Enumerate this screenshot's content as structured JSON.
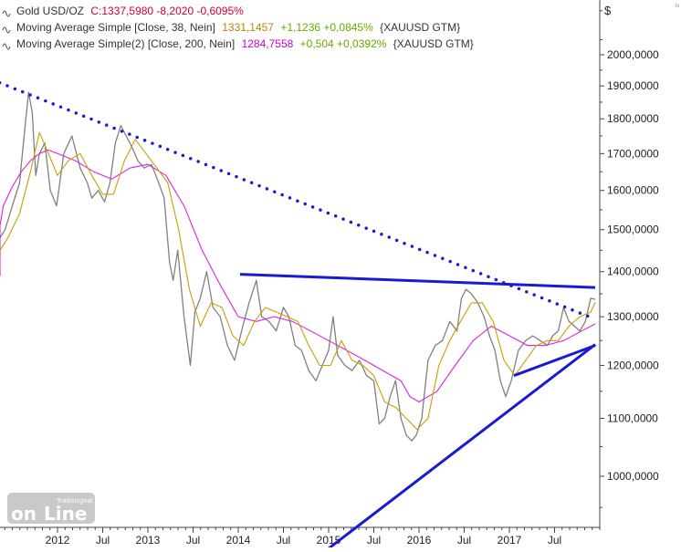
{
  "legend": [
    {
      "icon": "sine-wave-icon",
      "label": "Gold USD/OZ",
      "label_color": "#333333",
      "value_text": "C:1337,5980 -8,2020 -0,6095%",
      "value_color": "#cc0033",
      "suffix": "",
      "suffix_color": "#333333"
    },
    {
      "icon": "sine-wave-icon",
      "label": "Moving Average Simple [Close, 38, Nein]",
      "label_color": "#333333",
      "value_text": "1331,1457",
      "value_color": "#b8860b",
      "change_text": "+1,1236 +0,0845%",
      "change_color": "#66aa00",
      "suffix": "{XAUUSD GTM}",
      "suffix_color": "#333333"
    },
    {
      "icon": "sine-wave-icon",
      "label": "Moving Average Simple(2) [Close, 200, Nein]",
      "label_color": "#333333",
      "value_text": "1284,7558",
      "value_color": "#cc00cc",
      "change_text": "+0,504 +0,0392%",
      "change_color": "#66aa00",
      "suffix": "{XAUUSD GTM}",
      "suffix_color": "#333333"
    }
  ],
  "axis": {
    "currency_symbol": "$",
    "corner_mark": "lx"
  },
  "watermark": {
    "brand_small": "Tradesignal",
    "brand_big_on": "on",
    "brand_big_line": "Line"
  },
  "chart_data": {
    "type": "line",
    "title": "Gold USD/OZ",
    "y_scale": "log",
    "ylim": [
      900,
      2200
    ],
    "yticks": [
      1000,
      1100,
      1200,
      1300,
      1400,
      1500,
      1600,
      1700,
      1800,
      1900,
      2000
    ],
    "ytick_labels": [
      "1000,0000",
      "1100,0000",
      "1200,0000",
      "1300,0000",
      "1400,0000",
      "1500,0000",
      "1600,0000",
      "1700,0000",
      "1800,0000",
      "1900,0000",
      "2000,0000"
    ],
    "xlim": [
      2011.0,
      2018.0
    ],
    "xticks": [
      2012.0,
      2012.5,
      2013.0,
      2013.5,
      2014.0,
      2014.5,
      2015.0,
      2015.5,
      2016.0,
      2016.5,
      2017.0,
      2017.5
    ],
    "xtick_labels": [
      "2012",
      "Jul",
      "2013",
      "Jul",
      "2014",
      "Jul",
      "2015",
      "Jul",
      "2016",
      "Jul",
      "2017",
      "Jul"
    ],
    "grid": false,
    "colors": {
      "price": "#808080",
      "ma38": "#c8a000",
      "ma200": "#dd22dd",
      "trend": "#1a1ad6"
    },
    "series": [
      {
        "name": "Gold USD/OZ",
        "x": [
          2011.33,
          2011.42,
          2011.5,
          2011.58,
          2011.63,
          2011.68,
          2011.72,
          2011.76,
          2011.8,
          2011.86,
          2011.92,
          2011.99,
          2012.07,
          2012.16,
          2012.25,
          2012.33,
          2012.38,
          2012.45,
          2012.52,
          2012.58,
          2012.64,
          2012.7,
          2012.76,
          2012.82,
          2012.89,
          2012.96,
          2013.04,
          2013.12,
          2013.18,
          2013.24,
          2013.28,
          2013.33,
          2013.4,
          2013.47,
          2013.52,
          2013.58,
          2013.65,
          2013.72,
          2013.8,
          2013.88,
          2013.96,
          2014.05,
          2014.12,
          2014.2,
          2014.26,
          2014.34,
          2014.42,
          2014.5,
          2014.56,
          2014.63,
          2014.7,
          2014.78,
          2014.86,
          2014.93,
          2015.0,
          2015.05,
          2015.1,
          2015.18,
          2015.26,
          2015.34,
          2015.42,
          2015.5,
          2015.56,
          2015.62,
          2015.68,
          2015.74,
          2015.8,
          2015.86,
          2015.92,
          2015.97,
          2016.03,
          2016.1,
          2016.18,
          2016.26,
          2016.34,
          2016.42,
          2016.47,
          2016.52,
          2016.58,
          2016.65,
          2016.72,
          2016.78,
          2016.84,
          2016.9,
          2016.96,
          2017.02,
          2017.1,
          2017.18,
          2017.26,
          2017.34,
          2017.42,
          2017.48,
          2017.54,
          2017.6,
          2017.66,
          2017.72,
          2017.78,
          2017.84,
          2017.9,
          2017.95
        ],
        "values": [
          1480,
          1500,
          1560,
          1620,
          1750,
          1880,
          1820,
          1640,
          1700,
          1730,
          1600,
          1560,
          1700,
          1750,
          1660,
          1620,
          1580,
          1600,
          1570,
          1620,
          1730,
          1780,
          1750,
          1720,
          1680,
          1660,
          1670,
          1620,
          1580,
          1420,
          1380,
          1450,
          1300,
          1200,
          1310,
          1340,
          1400,
          1320,
          1300,
          1240,
          1210,
          1280,
          1330,
          1380,
          1300,
          1290,
          1270,
          1320,
          1300,
          1240,
          1230,
          1190,
          1170,
          1200,
          1230,
          1300,
          1220,
          1200,
          1190,
          1210,
          1180,
          1170,
          1090,
          1100,
          1140,
          1170,
          1100,
          1070,
          1060,
          1070,
          1100,
          1210,
          1240,
          1250,
          1290,
          1270,
          1340,
          1360,
          1350,
          1330,
          1300,
          1260,
          1230,
          1170,
          1140,
          1170,
          1230,
          1250,
          1260,
          1250,
          1240,
          1260,
          1270,
          1320,
          1290,
          1280,
          1270,
          1290,
          1340,
          1337.6
        ]
      },
      {
        "name": "Moving Average Simple [Close, 38, Nein]",
        "x": [
          2011.33,
          2011.45,
          2011.58,
          2011.7,
          2011.8,
          2011.9,
          2012.0,
          2012.12,
          2012.25,
          2012.38,
          2012.5,
          2012.62,
          2012.74,
          2012.86,
          2012.98,
          2013.1,
          2013.22,
          2013.34,
          2013.46,
          2013.58,
          2013.7,
          2013.82,
          2013.94,
          2014.06,
          2014.18,
          2014.3,
          2014.42,
          2014.54,
          2014.66,
          2014.78,
          2014.9,
          2015.02,
          2015.14,
          2015.26,
          2015.38,
          2015.5,
          2015.62,
          2015.74,
          2015.86,
          2015.98,
          2016.1,
          2016.22,
          2016.34,
          2016.46,
          2016.58,
          2016.7,
          2016.82,
          2016.94,
          2017.06,
          2017.18,
          2017.3,
          2017.42,
          2017.54,
          2017.66,
          2017.78,
          2017.9,
          2017.95
        ],
        "values": [
          1450,
          1480,
          1540,
          1650,
          1760,
          1700,
          1640,
          1680,
          1700,
          1640,
          1590,
          1590,
          1680,
          1740,
          1700,
          1660,
          1620,
          1500,
          1360,
          1280,
          1330,
          1320,
          1260,
          1240,
          1290,
          1320,
          1310,
          1300,
          1290,
          1240,
          1200,
          1200,
          1250,
          1210,
          1200,
          1180,
          1130,
          1120,
          1100,
          1080,
          1100,
          1200,
          1250,
          1290,
          1330,
          1330,
          1290,
          1210,
          1180,
          1210,
          1240,
          1250,
          1250,
          1280,
          1300,
          1310,
          1331.1
        ]
      },
      {
        "name": "Moving Average Simple(2) [Close, 200, Nein]",
        "x": [
          2011.0,
          2011.1,
          2011.2,
          2011.3,
          2011.4,
          2011.5,
          2011.6,
          2011.7,
          2011.8,
          2011.9,
          2012.0,
          2012.2,
          2012.4,
          2012.6,
          2012.8,
          2013.0,
          2013.2,
          2013.4,
          2013.6,
          2013.8,
          2014.0,
          2014.2,
          2014.4,
          2014.6,
          2014.8,
          2015.0,
          2015.2,
          2015.4,
          2015.6,
          2015.8,
          2015.9,
          2016.0,
          2016.2,
          2016.4,
          2016.6,
          2016.8,
          2017.0,
          2017.2,
          2017.4,
          2017.6,
          2017.8,
          2017.95
        ],
        "values": [
          1390,
          1420,
          1460,
          1510,
          1560,
          1610,
          1650,
          1680,
          1700,
          1710,
          1700,
          1680,
          1650,
          1630,
          1660,
          1670,
          1640,
          1560,
          1450,
          1370,
          1300,
          1290,
          1300,
          1290,
          1270,
          1250,
          1230,
          1210,
          1190,
          1170,
          1140,
          1130,
          1150,
          1200,
          1250,
          1280,
          1260,
          1240,
          1240,
          1250,
          1270,
          1284.8
        ]
      }
    ],
    "trendlines": [
      {
        "name": "resistance-dotted",
        "style": "dotted",
        "x": [
          2011.36,
          2017.95
        ],
        "values": [
          1910,
          1295
        ]
      },
      {
        "name": "resistance-solid",
        "style": "solid",
        "x": [
          2014.02,
          2017.95
        ],
        "values": [
          1394,
          1364
        ]
      },
      {
        "name": "support-long",
        "style": "solid",
        "x": [
          2014.9,
          2017.95
        ],
        "values": [
          878,
          1242
        ]
      },
      {
        "name": "support-short",
        "style": "solid",
        "x": [
          2017.05,
          2017.95
        ],
        "values": [
          1180,
          1240
        ]
      }
    ]
  }
}
